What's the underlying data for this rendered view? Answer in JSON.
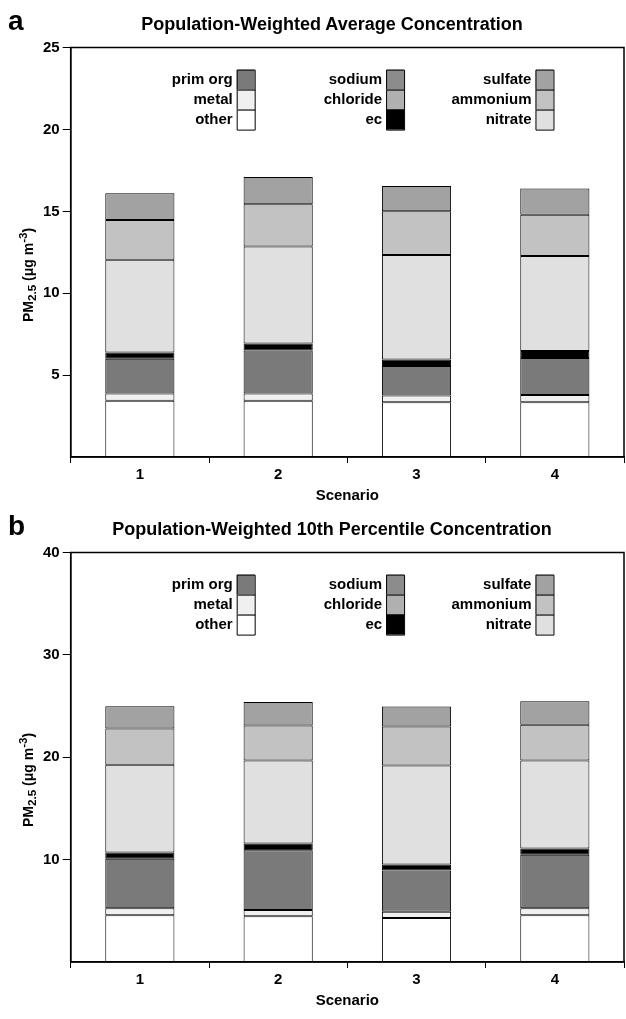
{
  "chart_data": [
    {
      "type": "bar",
      "title": "Population-Weighted Average Concentration",
      "xlabel": "Scenario",
      "ylabel": "PM$_{2.5}$ (μg m$^{-3}$)",
      "annotations": [
        "a"
      ],
      "categories": [
        "1",
        "2",
        "3",
        "4"
      ],
      "stacked": true,
      "legend": "top",
      "grid": false,
      "ylim": [
        0,
        25
      ],
      "yticks": [
        5,
        10,
        15,
        20,
        25
      ],
      "series": [
        {
          "name": "other",
          "color": "#ffffff",
          "values": [
            3.43,
            3.43,
            3.35,
            3.35
          ]
        },
        {
          "name": "metal",
          "color": "#f0f0f0",
          "values": [
            0.45,
            0.45,
            0.4,
            0.43
          ]
        },
        {
          "name": "prim org",
          "color": "#7a7a7a",
          "values": [
            2.12,
            2.62,
            1.8,
            2.27
          ]
        },
        {
          "name": "ec",
          "color": "#000000",
          "values": [
            0.38,
            0.43,
            0.4,
            0.43
          ]
        },
        {
          "name": "chloride",
          "color": "#b0b0b0",
          "values": [
            0,
            0,
            0,
            0
          ]
        },
        {
          "name": "sodium",
          "color": "#8c8c8c",
          "values": [
            0,
            0,
            0,
            0
          ]
        },
        {
          "name": "nitrate",
          "color": "#e0e0e0",
          "values": [
            5.67,
            5.92,
            6.38,
            5.8
          ]
        },
        {
          "name": "ammonium",
          "color": "#c2c2c2",
          "values": [
            2.43,
            2.58,
            2.67,
            2.52
          ]
        },
        {
          "name": "sulfate",
          "color": "#a2a2a2",
          "values": [
            1.62,
            1.67,
            1.55,
            1.6
          ]
        }
      ]
    },
    {
      "type": "bar",
      "title": "Population-Weighted 10th Percentile Concentration",
      "xlabel": "Scenario",
      "ylabel": "PM$_{2.5}$ (μg m$^{-3}$)",
      "annotations": [
        "b"
      ],
      "categories": [
        "1",
        "2",
        "3",
        "4"
      ],
      "stacked": true,
      "legend": "top",
      "grid": false,
      "ylim": [
        0,
        40
      ],
      "yticks": [
        10,
        20,
        30,
        40
      ],
      "series": [
        {
          "name": "other",
          "color": "#ffffff",
          "values": [
            4.56,
            4.48,
            4.31,
            4.56
          ]
        },
        {
          "name": "metal",
          "color": "#f0f0f0",
          "values": [
            0.68,
            0.6,
            0.61,
            0.68
          ]
        },
        {
          "name": "prim org",
          "color": "#7a7a7a",
          "values": [
            4.84,
            5.85,
            4.03,
            5.24
          ]
        },
        {
          "name": "ec",
          "color": "#000000",
          "values": [
            0.61,
            0.64,
            0.57,
            0.61
          ]
        },
        {
          "name": "chloride",
          "color": "#b0b0b0",
          "values": [
            0,
            0,
            0,
            0
          ]
        },
        {
          "name": "sodium",
          "color": "#8c8c8c",
          "values": [
            0,
            0,
            0,
            0
          ]
        },
        {
          "name": "nitrate",
          "color": "#e0e0e0",
          "values": [
            8.58,
            8.11,
            9.67,
            8.59
          ]
        },
        {
          "name": "ammonium",
          "color": "#c2c2c2",
          "values": [
            3.55,
            3.42,
            3.83,
            3.51
          ]
        },
        {
          "name": "sulfate",
          "color": "#a2a2a2",
          "values": [
            2.18,
            2.3,
            1.94,
            2.29
          ]
        }
      ]
    }
  ]
}
